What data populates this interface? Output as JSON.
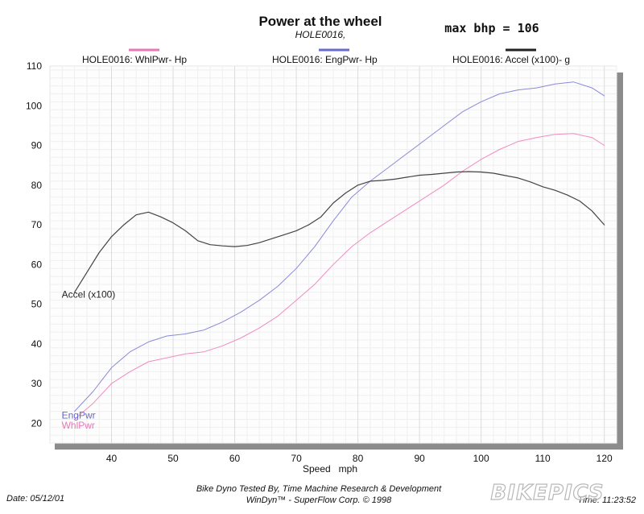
{
  "chart_data": {
    "type": "line",
    "title": "Power at the wheel",
    "subtitle": "HOLE0016,",
    "max_label": "max bhp = 106",
    "xlabel": "Speed   mph",
    "ylabel": "",
    "xlim": [
      30,
      122
    ],
    "ylim": [
      15,
      110
    ],
    "xticks": [
      40,
      50,
      60,
      70,
      80,
      90,
      100,
      110,
      120
    ],
    "yticks": [
      20,
      30,
      40,
      50,
      60,
      70,
      80,
      90,
      100,
      110
    ],
    "grid": true,
    "legend_position": "top",
    "legend": [
      {
        "label": "HOLE0016: WhlPwr-  Hp",
        "color": "#e678b4"
      },
      {
        "label": "HOLE0016: EngPwr-  Hp",
        "color": "#6a6ac8"
      },
      {
        "label": "HOLE0016: Accel (x100)-  g",
        "color": "#222222"
      }
    ],
    "series": [
      {
        "name": "WhlPwr",
        "color": "#f08cc0",
        "x": [
          34,
          37,
          40,
          43,
          46,
          49,
          52,
          55,
          58,
          61,
          64,
          67,
          70,
          73,
          76,
          79,
          82,
          85,
          88,
          91,
          94,
          97,
          100,
          103,
          106,
          109,
          112,
          115,
          118,
          120
        ],
        "y": [
          21,
          25,
          30,
          33,
          35.5,
          36.5,
          37.5,
          38,
          39.5,
          41.5,
          44,
          47,
          51,
          55,
          60,
          64.5,
          68,
          71,
          74,
          77,
          80,
          83.5,
          86.5,
          89,
          91,
          92,
          92.8,
          93,
          92,
          90
        ]
      },
      {
        "name": "EngPwr",
        "color": "#8a8ad8",
        "x": [
          34,
          37,
          40,
          43,
          46,
          49,
          52,
          55,
          58,
          61,
          64,
          67,
          70,
          73,
          76,
          79,
          82,
          85,
          88,
          91,
          94,
          97,
          100,
          103,
          106,
          109,
          112,
          115,
          118,
          120
        ],
        "y": [
          23,
          28,
          34,
          38,
          40.5,
          42,
          42.5,
          43.5,
          45.5,
          48,
          51,
          54.5,
          59,
          64.5,
          71,
          77,
          81,
          84.5,
          88,
          91.5,
          95,
          98.5,
          101,
          103,
          104,
          104.5,
          105.5,
          106,
          104.5,
          102.5
        ]
      },
      {
        "name": "Accel (x100)",
        "color": "#444444",
        "x": [
          34,
          36,
          38,
          40,
          42,
          44,
          46,
          48,
          50,
          52,
          54,
          56,
          58,
          60,
          62,
          64,
          66,
          68,
          70,
          72,
          74,
          76,
          78,
          80,
          82,
          84,
          86,
          88,
          90,
          92,
          94,
          96,
          98,
          100,
          102,
          104,
          106,
          108,
          110,
          112,
          114,
          116,
          118,
          120
        ],
        "y": [
          53,
          58,
          63,
          67,
          70,
          72.5,
          73.2,
          72,
          70.5,
          68.5,
          66,
          65,
          64.7,
          64.5,
          64.8,
          65.5,
          66.5,
          67.5,
          68.5,
          70,
          72,
          75.5,
          78,
          80,
          81,
          81.2,
          81.5,
          82,
          82.5,
          82.7,
          83,
          83.3,
          83.4,
          83.3,
          83,
          82.4,
          81.8,
          80.8,
          79.6,
          78.7,
          77.5,
          76,
          73.5,
          70
        ]
      }
    ],
    "annotations": [
      {
        "text": "Accel (x100)",
        "x": 34,
        "y": 52.5,
        "color": "#222222"
      },
      {
        "text": "EngPwr",
        "x": 34,
        "y": 22,
        "color": "#6a6ac8"
      },
      {
        "text": "WhlPwr",
        "x": 34,
        "y": 19.5,
        "color": "#e678b4"
      }
    ]
  },
  "footer": {
    "date": "Date: 05/12/01",
    "tested_by": "Bike Dyno Tested By, Time Machine Research & Development",
    "software": "WinDyn™ - SuperFlow Corp. © 1998",
    "time": "Time: 11:23:52",
    "watermark": "BIKEPICS"
  }
}
